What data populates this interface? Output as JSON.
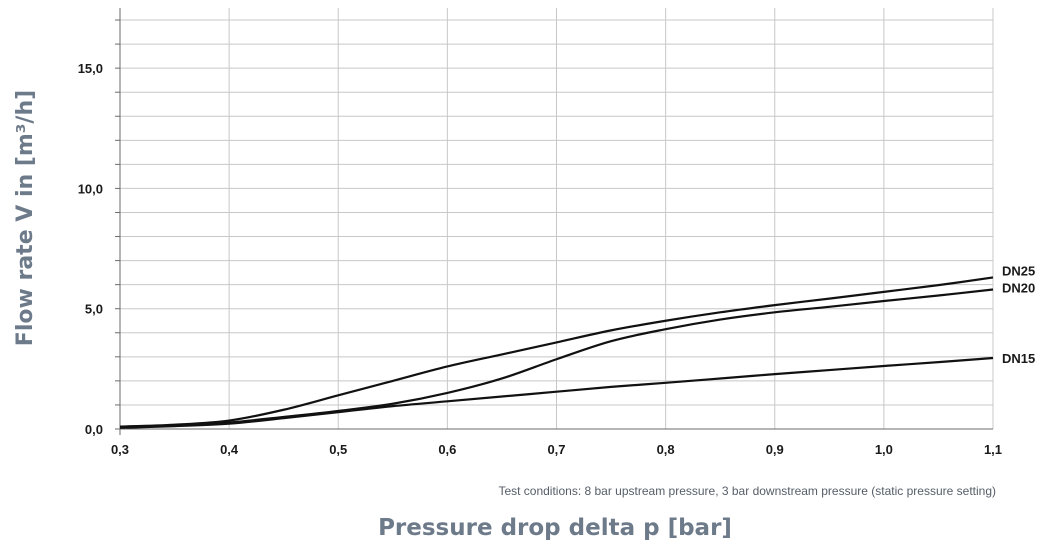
{
  "chart_data": {
    "type": "line",
    "title": "",
    "xlabel": "Pressure drop delta p [bar]",
    "ylabel": "Flow rate V in [m³/h]",
    "note": "Test conditions: 8 bar upstream pressure, 3 bar downstream pressure (static pressure setting)",
    "xlim": [
      0.3,
      1.1
    ],
    "ylim": [
      0,
      17.5
    ],
    "x_ticks": [
      "0,3",
      "0,4",
      "0,5",
      "0,6",
      "0,7",
      "0,8",
      "0,9",
      "1,0",
      "1,1"
    ],
    "y_ticks": [
      "0,0",
      "5,0",
      "10,0",
      "15,0"
    ],
    "grid": true,
    "colors": {
      "line": "#111111",
      "grid": "#c8c8c8",
      "label": "#6d7a8a"
    },
    "series": [
      {
        "name": "DN25",
        "x": [
          0.3,
          0.35,
          0.4,
          0.45,
          0.5,
          0.55,
          0.6,
          0.65,
          0.7,
          0.75,
          0.8,
          0.85,
          0.9,
          0.95,
          1.0,
          1.05,
          1.1
        ],
        "y": [
          0.1,
          0.18,
          0.35,
          0.8,
          1.4,
          2.0,
          2.6,
          3.1,
          3.6,
          4.1,
          4.5,
          4.85,
          5.15,
          5.42,
          5.7,
          5.98,
          6.3
        ]
      },
      {
        "name": "DN20",
        "x": [
          0.3,
          0.35,
          0.4,
          0.45,
          0.5,
          0.55,
          0.6,
          0.65,
          0.7,
          0.75,
          0.8,
          0.85,
          0.9,
          0.95,
          1.0,
          1.05,
          1.1
        ],
        "y": [
          0.07,
          0.14,
          0.27,
          0.5,
          0.75,
          1.05,
          1.5,
          2.1,
          2.9,
          3.65,
          4.15,
          4.55,
          4.85,
          5.08,
          5.32,
          5.55,
          5.8
        ]
      },
      {
        "name": "DN15",
        "x": [
          0.3,
          0.35,
          0.4,
          0.45,
          0.5,
          0.55,
          0.6,
          0.65,
          0.7,
          0.75,
          0.8,
          0.85,
          0.9,
          0.95,
          1.0,
          1.05,
          1.1
        ],
        "y": [
          0.05,
          0.12,
          0.22,
          0.45,
          0.7,
          0.95,
          1.15,
          1.35,
          1.55,
          1.75,
          1.92,
          2.1,
          2.28,
          2.45,
          2.62,
          2.78,
          2.95
        ]
      }
    ]
  }
}
